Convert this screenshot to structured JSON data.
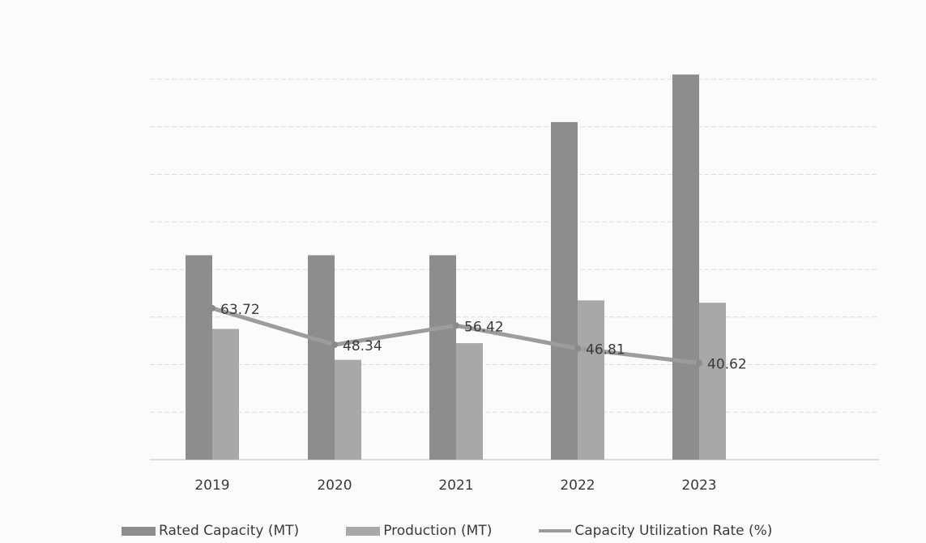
{
  "chart_data": {
    "type": "bar",
    "title": "",
    "xlabel": "",
    "ylabel": "",
    "categories": [
      "2019",
      "2020",
      "2021",
      "2022",
      "2023"
    ],
    "ylim": [
      0,
      16
    ],
    "grid": true,
    "legend_position": "bottom",
    "series": [
      {
        "name": "Rated Capacity (MT)",
        "type": "bar",
        "values": [
          8.6,
          8.6,
          8.6,
          14.2,
          16.2
        ],
        "color": "#8d8d8d"
      },
      {
        "name": "Production (MT)",
        "type": "bar",
        "values": [
          5.5,
          4.2,
          4.9,
          6.7,
          6.6
        ],
        "color": "#a8a8a8"
      },
      {
        "name": "Capacity Utilization Rate (%)",
        "type": "line",
        "values": [
          63.72,
          48.34,
          56.42,
          46.81,
          40.62
        ],
        "labels": [
          "63.72",
          "48.34",
          "56.42",
          "46.81",
          "40.62"
        ],
        "color": "#9c9c9c",
        "ylim": [
          0,
          160
        ]
      }
    ]
  }
}
